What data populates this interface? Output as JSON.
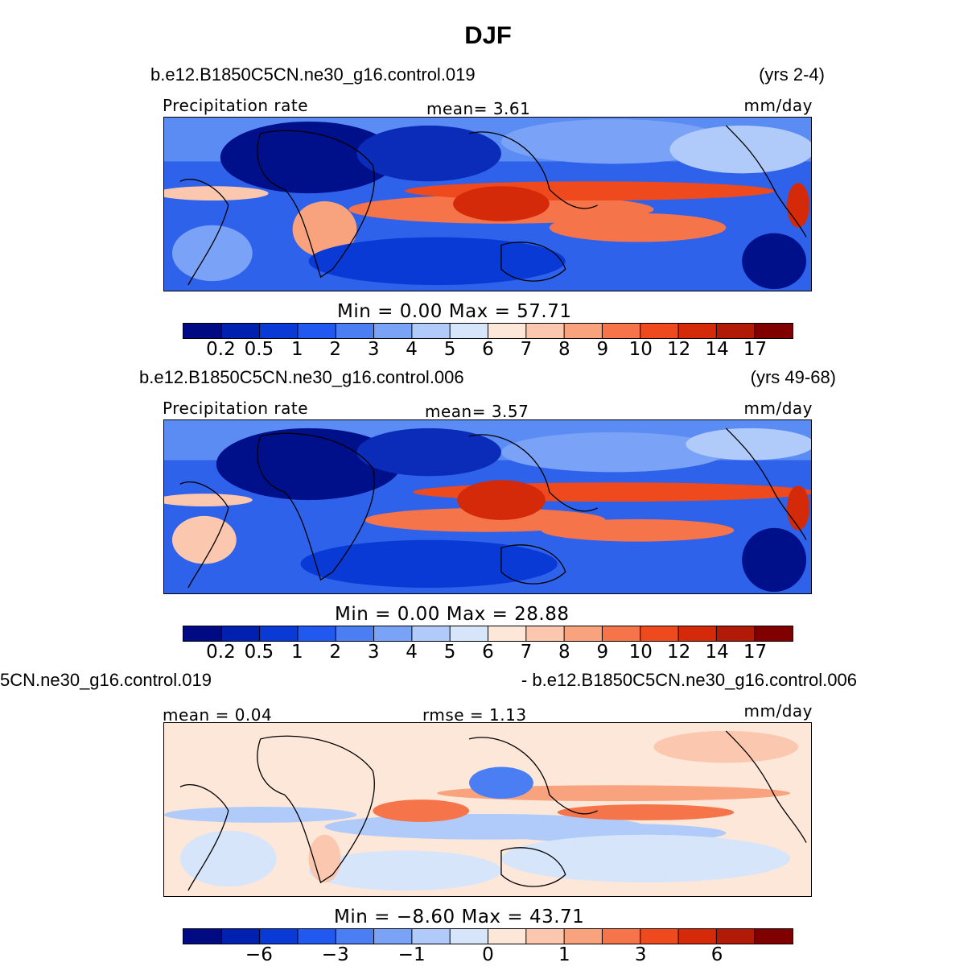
{
  "title": "DJF",
  "panels": [
    {
      "case": "b.e12.B1850C5CN.ne30_g16.control.019",
      "years": "(yrs 2-4)",
      "left_label": "Precipitation  rate",
      "mid_label": "mean=    3.61",
      "units": "mm/day",
      "min_max": "Min  =     0.00  Max  =    57.71",
      "colorbar_ticks": [
        "0.2",
        "0.5",
        "1",
        "2",
        "3",
        "4",
        "5",
        "6",
        "7",
        "8",
        "9",
        "10",
        "12",
        "14",
        "17"
      ]
    },
    {
      "case": "b.e12.B1850C5CN.ne30_g16.control.006",
      "years": "(yrs 49-68)",
      "left_label": "Precipitation  rate",
      "mid_label": "mean=    3.57",
      "units": "mm/day",
      "min_max": "Min  =     0.00  Max  =    28.88",
      "colorbar_ticks": [
        "0.2",
        "0.5",
        "1",
        "2",
        "3",
        "4",
        "5",
        "6",
        "7",
        "8",
        "9",
        "10",
        "12",
        "14",
        "17"
      ]
    },
    {
      "case": "5CN.ne30_g16.control.019",
      "case_right": "- b.e12.B1850C5CN.ne30_g16.control.006",
      "left_label": "mean  =     0.04",
      "mid_label": "rmse  =     1.13",
      "units": "mm/day",
      "min_max": "Min  =    −8.60  Max  =    43.71",
      "colorbar_ticks": [
        "−6",
        "−3",
        "−1",
        "0",
        "1",
        "3",
        "6"
      ],
      "colorbar_tick_slots": [
        2,
        4,
        6,
        8,
        10,
        12,
        14
      ]
    }
  ],
  "colors": {
    "colorbar": [
      "#000a82",
      "#0021b0",
      "#0a3ad6",
      "#2058f0",
      "#4a7ef2",
      "#7aa2f6",
      "#b0caf9",
      "#d7e5fb",
      "#fde7d8",
      "#fbc7ae",
      "#f8a27e",
      "#f5744a",
      "#ee4a1e",
      "#d42a0a",
      "#b01a06",
      "#800000"
    ]
  },
  "chart_data": [
    {
      "type": "heatmap",
      "title": "DJF",
      "subtitle": "b.e12.B1850C5CN.ne30_g16.control.019",
      "variable": "Precipitation  rate",
      "units": "mm/day",
      "mean": 3.61,
      "min": 0.0,
      "max": 57.71,
      "contour_levels": [
        0.2,
        0.5,
        1,
        2,
        3,
        4,
        5,
        6,
        7,
        8,
        9,
        10,
        12,
        14,
        17
      ]
    },
    {
      "type": "heatmap",
      "subtitle": "b.e12.B1850C5CN.ne30_g16.control.006",
      "variable": "Precipitation  rate",
      "units": "mm/day",
      "mean": 3.57,
      "min": 0.0,
      "max": 28.88,
      "contour_levels": [
        0.2,
        0.5,
        1,
        2,
        3,
        4,
        5,
        6,
        7,
        8,
        9,
        10,
        12,
        14,
        17
      ]
    },
    {
      "type": "heatmap",
      "units": "mm/day",
      "mean": 0.04,
      "rmse": 1.13,
      "min": -8.6,
      "max": 43.71,
      "contour_ticks": [
        -6,
        -3,
        -1,
        0,
        1,
        3,
        6
      ]
    }
  ]
}
